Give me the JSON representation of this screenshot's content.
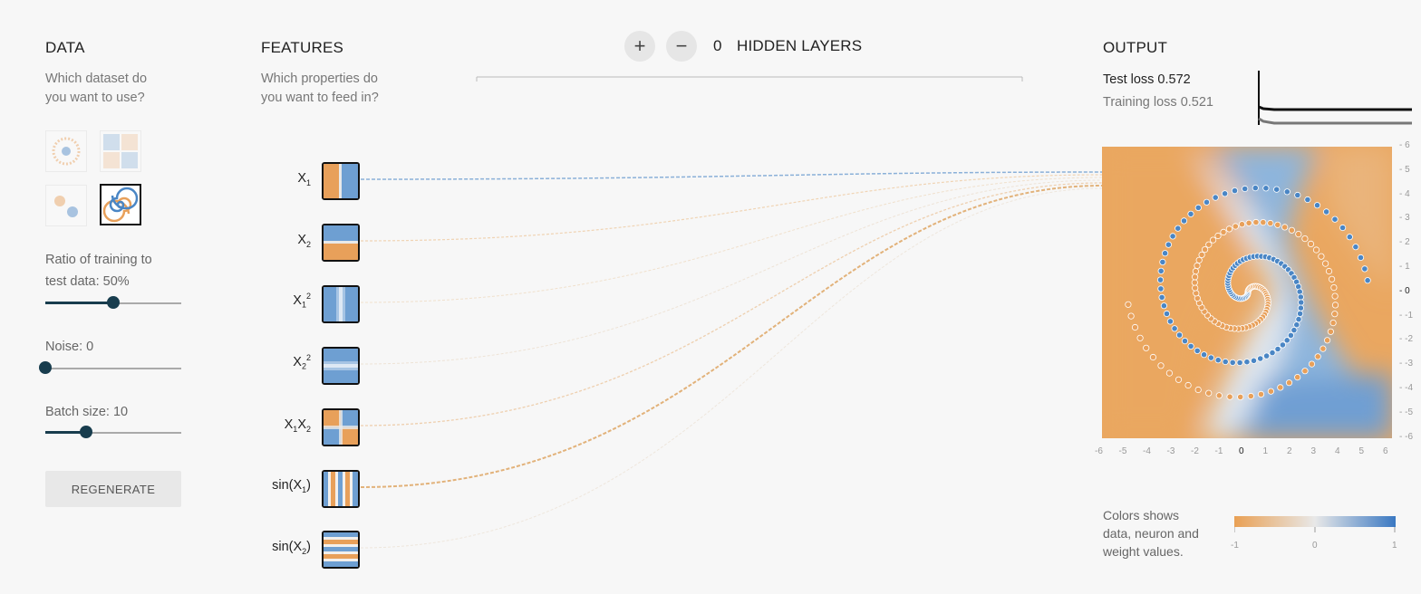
{
  "data": {
    "title": "DATA",
    "subtitle_line1": "Which dataset do",
    "subtitle_line2": "you want to use?",
    "ratio_label_line1": "Ratio of training to",
    "ratio_label_line2": "test data:  50%",
    "ratio_value": 0.5,
    "noise_label": "Noise:  0",
    "noise_value": 0.0,
    "batch_label": "Batch size:  10",
    "batch_value": 0.3,
    "regenerate_label": "REGENERATE"
  },
  "features": {
    "title": "FEATURES",
    "subtitle_line1": "Which properties do",
    "subtitle_line2": "you want to feed in?"
  },
  "hidden": {
    "plus": "+",
    "minus": "−",
    "count": "0",
    "label": "HIDDEN LAYERS"
  },
  "output": {
    "title": "OUTPUT",
    "test_loss": "Test loss 0.572",
    "training_loss": "Training loss 0.521",
    "x_ticks": [
      "-6",
      "-5",
      "-4",
      "-3",
      "-2",
      "-1",
      "0",
      "1",
      "2",
      "3",
      "4",
      "5",
      "6"
    ],
    "y_ticks": [
      "6",
      "5",
      "4",
      "3",
      "2",
      "1",
      "0",
      "-1",
      "-2",
      "-3",
      "-4",
      "-5",
      "-6"
    ],
    "legend_line1": "Colors shows",
    "legend_line2": "data, neuron and",
    "legend_line3": "weight values.",
    "legend_min": "-1",
    "legend_mid": "0",
    "legend_max": "1"
  },
  "colors": {
    "orange": "#e8a05a",
    "blue": "#4a86c5",
    "dark": "#183d4e"
  }
}
